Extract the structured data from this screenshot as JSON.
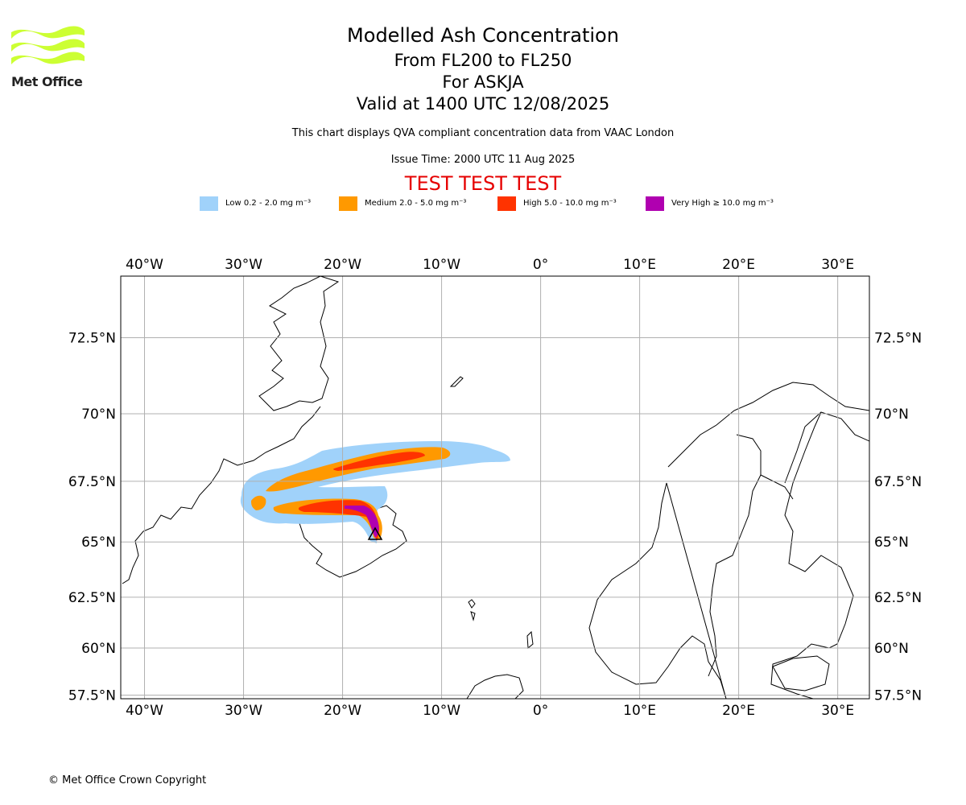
{
  "header": {
    "title": "Modelled Ash Concentration",
    "level_range": "From FL200 to FL250",
    "volcano": "For ASKJA",
    "valid_time": "Valid at 1400 UTC 12/08/2025",
    "description": "This chart displays QVA compliant concentration data from VAAC London",
    "issue_time": "Issue Time: 2000 UTC 11 Aug 2025",
    "test_banner": "TEST TEST TEST",
    "test_color": "#e60000"
  },
  "logo": {
    "text": "Met Office",
    "icon": "met-office-logo-icon",
    "color": "#ccff33"
  },
  "legend": [
    {
      "label": "Low 0.2 - 2.0 mg m⁻³",
      "color": "#a0d2fa"
    },
    {
      "label": "Medium 2.0 - 5.0 mg m⁻³",
      "color": "#ff9900"
    },
    {
      "label": "High 5.0 - 10.0 mg m⁻³",
      "color": "#ff3300"
    },
    {
      "label": "Very High ≥ 10.0 mg m⁻³",
      "color": "#b000b0"
    }
  ],
  "map": {
    "lon_ticks": [
      "40°W",
      "30°W",
      "20°W",
      "10°W",
      "0°",
      "10°E",
      "20°E",
      "30°E"
    ],
    "lon_values": [
      -40,
      -30,
      -20,
      -10,
      0,
      10,
      20,
      30
    ],
    "lat_ticks": [
      "72.5°N",
      "70°N",
      "67.5°N",
      "65°N",
      "62.5°N",
      "60°N",
      "57.5°N"
    ],
    "lat_values": [
      72.5,
      70,
      67.5,
      65,
      62.5,
      60,
      57.5
    ],
    "lon_range": [
      -42.4,
      33.2
    ],
    "grid": true
  },
  "footer": {
    "copyright": "© Met Office Crown Copyright"
  }
}
